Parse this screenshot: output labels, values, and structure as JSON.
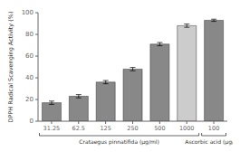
{
  "chart_data": {
    "type": "bar",
    "categories": [
      "31.25",
      "62.5",
      "125",
      "250",
      "500",
      "1000",
      "100"
    ],
    "values": [
      17,
      23,
      36,
      48,
      71,
      88,
      93
    ],
    "errors": [
      1.5,
      1.5,
      1.5,
      1.5,
      1.5,
      1.5,
      1.0
    ],
    "ylabel": "DPPH Radical Scavenging Activity (%)",
    "annotations": [
      {
        "text": "Crataegus pinnatifida (μg/ml)",
        "from": "31.25",
        "to": "1000"
      },
      {
        "text": "Ascorbic acid (μg/ml)",
        "from": "100",
        "to": "100"
      }
    ],
    "ylim": [
      0,
      100
    ],
    "yticks": [
      0,
      20,
      40,
      60,
      80,
      100
    ],
    "colors": [
      "#888888",
      "#888888",
      "#888888",
      "#888888",
      "#888888",
      "#cccccc",
      "#888888"
    ],
    "grid": false
  }
}
